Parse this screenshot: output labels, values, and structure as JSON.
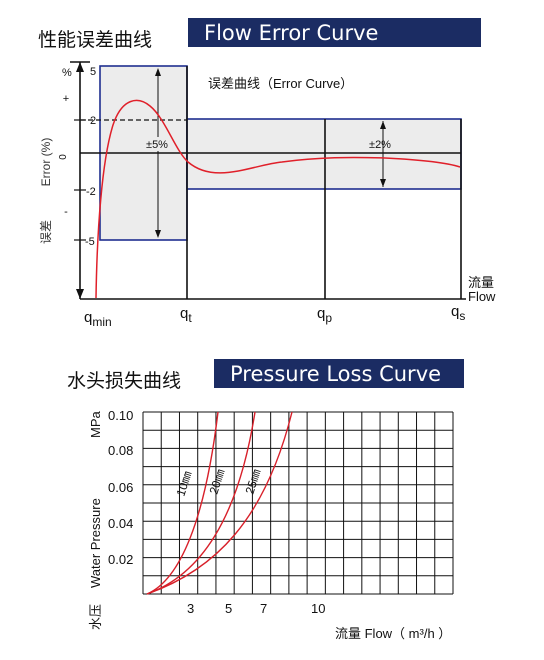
{
  "flow": {
    "title_cn": "性能误差曲线",
    "title_en": "Flow Error Curve",
    "curve_label": "误差曲线（Error Curve）",
    "y_unit": "%",
    "y_axis_label": "Error (%)",
    "y_axis_cn": "误差",
    "plus": "+",
    "zero": "0",
    "minus": "-",
    "y_ticks": [
      "5",
      "2",
      "-2",
      "-5"
    ],
    "tol_low": "±5%",
    "tol_high": "±2%",
    "x_ticks": [
      {
        "base": "q",
        "sub": "min"
      },
      {
        "base": "q",
        "sub": "t"
      },
      {
        "base": "q",
        "sub": "p"
      },
      {
        "base": "q",
        "sub": "s"
      }
    ],
    "x_label_cn": "流量",
    "x_label_en": "Flow",
    "colors": {
      "curve": "#e0202a",
      "band_border": "#1f2f8f",
      "band_fill": "#ececec"
    }
  },
  "pressure": {
    "title_cn": "水头损失曲线",
    "title_en": "Pressure Loss Curve",
    "y_unit": "MPa",
    "y_axis_en": "Water Pressure",
    "y_axis_cn": "水压",
    "x_axis": "流量 Flow（ m³/h ）",
    "y_ticks": [
      "0.10",
      "0.08",
      "0.06",
      "0.04",
      "0.02"
    ],
    "x_ticks": [
      "3",
      "5",
      "7",
      "10"
    ],
    "curves": [
      {
        "label": "10㎜"
      },
      {
        "label": "20㎜"
      },
      {
        "label": "25㎜"
      }
    ],
    "colors": {
      "curve": "#d8202a",
      "grid": "#111111"
    }
  }
}
